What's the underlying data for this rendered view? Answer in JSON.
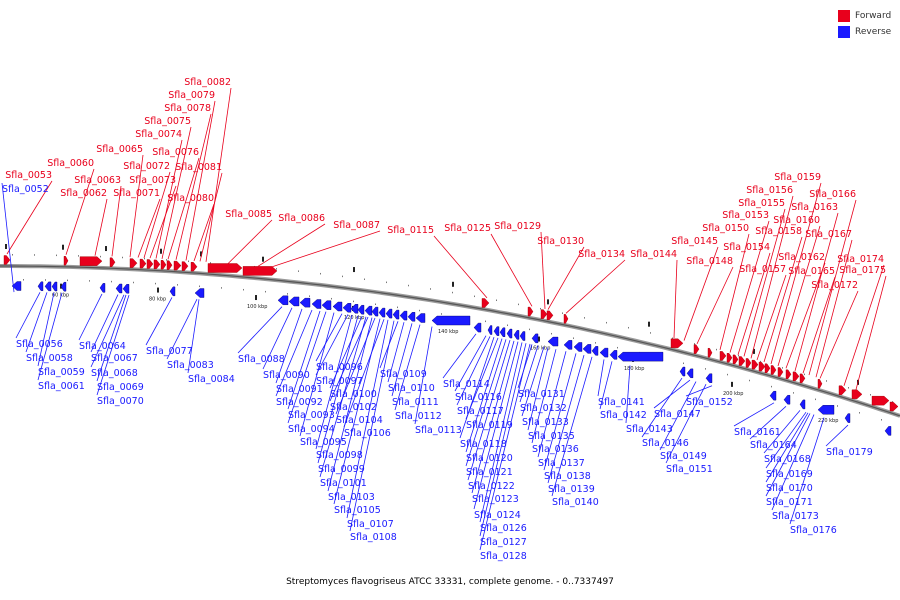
{
  "legend": {
    "forward": {
      "label": "Forward",
      "color": "#e8001c"
    },
    "reverse": {
      "label": "Reverse",
      "color": "#1a1aff"
    }
  },
  "caption": "Streptomyces flavogriseus ATCC 33331, complete genome. - 0..7337497",
  "scale_labels": [
    "60 kbp",
    "80 kbp",
    "100 kbp",
    "120 kbp",
    "140 kbp",
    "160 kbp",
    "180 kbp",
    "200 kbp",
    "220 kbp"
  ],
  "forward_labels": [
    "Sfla_0053",
    "Sfla_0060",
    "Sfla_0062",
    "Sfla_0063",
    "Sfla_0065",
    "Sfla_0071",
    "Sfla_0072",
    "Sfla_0073",
    "Sfla_0074",
    "Sfla_0075",
    "Sfla_0076",
    "Sfla_0078",
    "Sfla_0079",
    "Sfla_0080",
    "Sfla_0081",
    "Sfla_0082",
    "Sfla_0085",
    "Sfla_0086",
    "Sfla_0087",
    "Sfla_0115",
    "Sfla_0125",
    "Sfla_0129",
    "Sfla_0130",
    "Sfla_0134",
    "Sfla_0144",
    "Sfla_0145",
    "Sfla_0148",
    "Sfla_0150",
    "Sfla_0153",
    "Sfla_0154",
    "Sfla_0155",
    "Sfla_0156",
    "Sfla_0157",
    "Sfla_0158",
    "Sfla_0159",
    "Sfla_0160",
    "Sfla_0162",
    "Sfla_0163",
    "Sfla_0165",
    "Sfla_0166",
    "Sfla_0167",
    "Sfla_0172",
    "Sfla_0174",
    "Sfla_0175"
  ],
  "reverse_labels": [
    "Sfla_0052",
    "Sfla_0056",
    "Sfla_0058",
    "Sfla_0059",
    "Sfla_0061",
    "Sfla_0064",
    "Sfla_0067",
    "Sfla_0068",
    "Sfla_0069",
    "Sfla_0070",
    "Sfla_0077",
    "Sfla_0083",
    "Sfla_0084",
    "Sfla_0088",
    "Sfla_0090",
    "Sfla_0091",
    "Sfla_0092",
    "Sfla_0093",
    "Sfla_0094",
    "Sfla_0095",
    "Sfla_0096",
    "Sfla_0097",
    "Sfla_0098",
    "Sfla_0099",
    "Sfla_0100",
    "Sfla_0101",
    "Sfla_0102",
    "Sfla_0103",
    "Sfla_0104",
    "Sfla_0105",
    "Sfla_0106",
    "Sfla_0107",
    "Sfla_0108",
    "Sfla_0109",
    "Sfla_0110",
    "Sfla_0111",
    "Sfla_0112",
    "Sfla_0113",
    "Sfla_0114",
    "Sfla_0116",
    "Sfla_0117",
    "Sfla_0118",
    "Sfla_0119",
    "Sfla_0120",
    "Sfla_0121",
    "Sfla_0122",
    "Sfla_0123",
    "Sfla_0124",
    "Sfla_0126",
    "Sfla_0127",
    "Sfla_0128",
    "Sfla_0131",
    "Sfla_0132",
    "Sfla_0133",
    "Sfla_0135",
    "Sfla_0136",
    "Sfla_0137",
    "Sfla_0138",
    "Sfla_0139",
    "Sfla_0140",
    "Sfla_0141",
    "Sfla_0142",
    "Sfla_0143",
    "Sfla_0146",
    "Sfla_0147",
    "Sfla_0149",
    "Sfla_0151",
    "Sfla_0152",
    "Sfla_0161",
    "Sfla_0164",
    "Sfla_0168",
    "Sfla_0169",
    "Sfla_0170",
    "Sfla_0171",
    "Sfla_0173",
    "Sfla_0176",
    "Sfla_0179"
  ]
}
